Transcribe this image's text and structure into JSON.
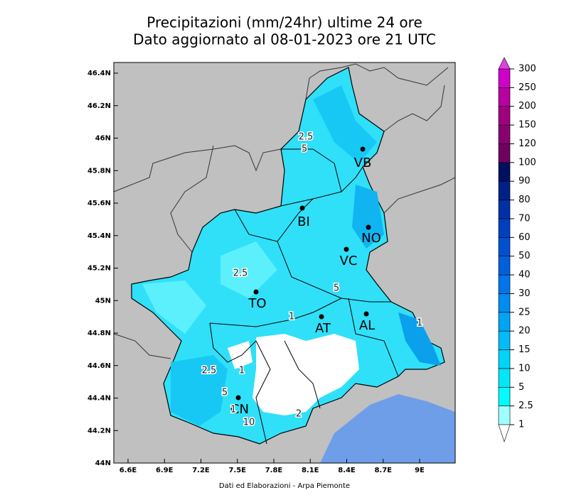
{
  "title": [
    "Precipitazioni (mm/24hr) ultime 24 ore",
    "Dato aggiornato al 08-01-2023 ore 21 UTC"
  ],
  "lat_labels": [
    "46.4N",
    "46.2N",
    "46N",
    "45.8N",
    "45.6N",
    "45.4N",
    "45.2N",
    "45N",
    "44.8N",
    "44.6N",
    "44.4N",
    "44.2N",
    "44N"
  ],
  "lon_labels": [
    "6.6E",
    "6.9E",
    "7.2E",
    "7.5E",
    "7.8E",
    "8.1E",
    "8.4E",
    "8.7E",
    "9E"
  ],
  "cities": [
    "VB",
    "BI",
    "NO",
    "VC",
    "TO",
    "AT",
    "AL",
    "CN"
  ],
  "contour_labels": [
    "2.5",
    "5",
    "2.5",
    "1",
    "5",
    "1",
    "2.5",
    "1",
    "5",
    "1",
    "10",
    "2"
  ],
  "colorbar": {
    "labels": [
      1,
      2.5,
      5,
      10,
      15,
      20,
      25,
      30,
      40,
      50,
      60,
      70,
      80,
      90,
      100,
      120,
      150,
      200,
      250,
      300
    ],
    "colors": [
      "#a0ffff",
      "#00fcfc",
      "#00e8f8",
      "#00d4f8",
      "#00bcf8",
      "#00a4f4",
      "#008cf0",
      "#0074ec",
      "#0060dc",
      "#0050d0",
      "#0040c0",
      "#0030a8",
      "#002088",
      "#001060",
      "#700060",
      "#880070",
      "#a00080",
      "#b800a0",
      "#d000c8"
    ]
  },
  "footer": "Dati ed Elaborazioni - Arpa Piemonte"
}
